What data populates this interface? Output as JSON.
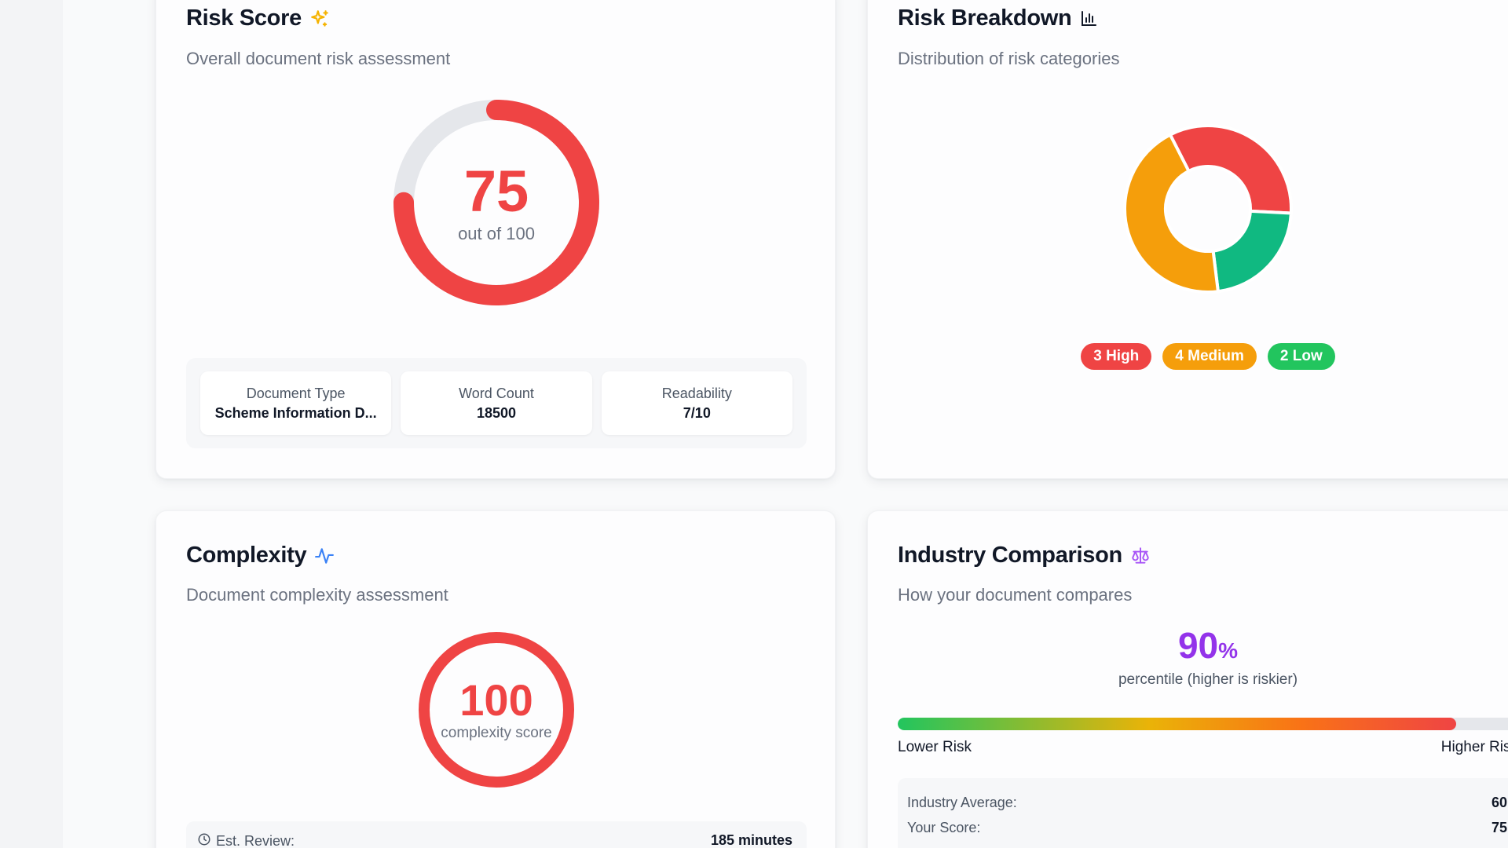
{
  "risk_score": {
    "title": "Risk Score",
    "icon": "sparkle-icon",
    "subtitle": "Overall document risk assessment",
    "score": 75,
    "score_display": "75",
    "max": 100,
    "out_of_label": "out of 100",
    "color": "#ef4444",
    "track_color": "#e5e7eb",
    "meta": [
      {
        "label": "Document Type",
        "value": "Scheme Information D..."
      },
      {
        "label": "Word Count",
        "value": "18500"
      },
      {
        "label": "Readability",
        "value": "7/10"
      }
    ]
  },
  "risk_breakdown": {
    "title": "Risk Breakdown",
    "icon": "bar-chart-icon",
    "subtitle": "Distribution of risk categories",
    "legend": [
      {
        "label": "3 High",
        "color": "#ef4444"
      },
      {
        "label": "4 Medium",
        "color": "#f59e0b"
      },
      {
        "label": "2 Low",
        "color": "#22c55e"
      }
    ]
  },
  "chart_data": {
    "type": "pie",
    "title": "Risk Breakdown",
    "categories": [
      "High",
      "Medium",
      "Low"
    ],
    "values": [
      3,
      4,
      2
    ],
    "colors": [
      "#ef4444",
      "#f59e0b",
      "#10b981"
    ]
  },
  "complexity": {
    "title": "Complexity",
    "icon": "activity-icon",
    "subtitle": "Document complexity assessment",
    "score_display": "100",
    "label": "complexity score",
    "color": "#ef4444",
    "review_label": "Est. Review:",
    "review_value": "185 minutes"
  },
  "industry": {
    "title": "Industry Comparison",
    "icon": "scale-icon",
    "subtitle": "How your document compares",
    "percentile_display": "90",
    "percentile_sign": "%",
    "percentile": 90,
    "caption": "percentile (higher is riskier)",
    "low_label": "Lower Risk",
    "high_label": "Higher Risk",
    "average_label": "Industry Average:",
    "average_value": "60",
    "your_label": "Your Score:",
    "your_value": "75",
    "accent": "#9333ea"
  }
}
